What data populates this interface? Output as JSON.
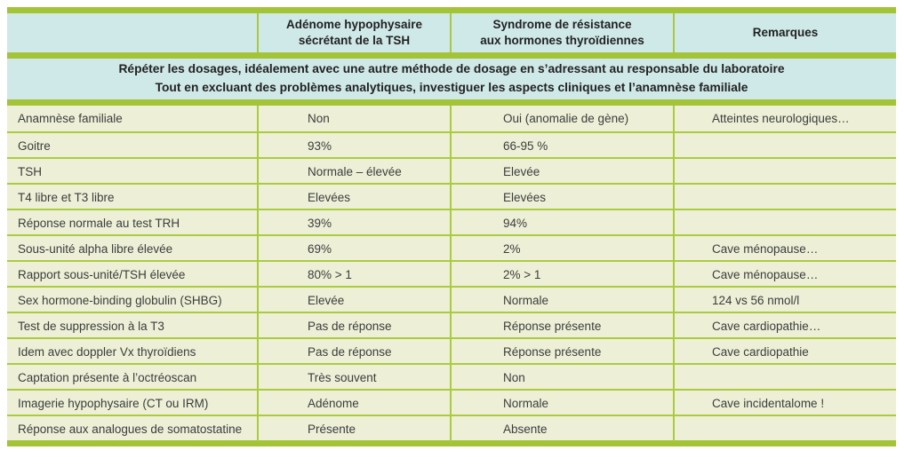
{
  "colors": {
    "rule_green": "#a4c438",
    "thin_rule_green": "#aacb40",
    "header_blue": "#cfe8e8",
    "cell_khaki": "#edf0d7",
    "text_dark": "#3c3c3c"
  },
  "table": {
    "header": {
      "col1": "",
      "col2_line1": "Adénome hypophysaire",
      "col2_line2": "sécrétant de la TSH",
      "col3_line1": "Syndrome de résistance",
      "col3_line2": "aux hormones thyroïdiennes",
      "col4": "Remarques"
    },
    "banner": {
      "line1": "Répéter les dosages, idéalement avec une autre méthode de dosage en s’adressant au responsable du laboratoire",
      "line2": "Tout en excluant des problèmes analytiques, investiguer les aspects cliniques et l’anamnèse familiale"
    },
    "rows": [
      {
        "label": "Anamnèse familiale",
        "adenome": "Non",
        "resistance": "Oui (anomalie de gène)",
        "remarque": "Atteintes neurologiques…"
      },
      {
        "label": "Goitre",
        "adenome": "93%",
        "resistance": "66-95 %",
        "remarque": ""
      },
      {
        "label": "TSH",
        "adenome": "Normale – élevée",
        "resistance": "Elevée",
        "remarque": ""
      },
      {
        "label": "T4 libre et T3 libre",
        "adenome": "Elevées",
        "resistance": "Elevées",
        "remarque": ""
      },
      {
        "label": "Réponse normale au test TRH",
        "adenome": "39%",
        "resistance": "94%",
        "remarque": ""
      },
      {
        "label": "Sous-unité alpha libre élevée",
        "adenome": "69%",
        "resistance": "2%",
        "remarque": "Cave ménopause…"
      },
      {
        "label": "Rapport sous-unité/TSH élevée",
        "adenome": "80% > 1",
        "resistance": "2% > 1",
        "remarque": "Cave ménopause…"
      },
      {
        "label": "Sex hormone-binding globulin (SHBG)",
        "adenome": "Elevée",
        "resistance": "Normale",
        "remarque": "124 vs 56 nmol/l"
      },
      {
        "label": "Test de suppression à la T3",
        "adenome": "Pas de réponse",
        "resistance": "Réponse présente",
        "remarque": "Cave cardiopathie…"
      },
      {
        "label": "Idem avec doppler Vx thyroïdiens",
        "adenome": "Pas de réponse",
        "resistance": "Réponse présente",
        "remarque": "Cave cardiopathie"
      },
      {
        "label": "Captation présente à l’octréoscan",
        "adenome": "Très souvent",
        "resistance": "Non",
        "remarque": ""
      },
      {
        "label": "Imagerie hypophysaire (CT ou IRM)",
        "adenome": "Adénome",
        "resistance": "Normale",
        "remarque": "Cave incidentalome !"
      },
      {
        "label": "Réponse aux analogues de somatostatine",
        "adenome": "Présente",
        "resistance": "Absente",
        "remarque": ""
      }
    ]
  }
}
